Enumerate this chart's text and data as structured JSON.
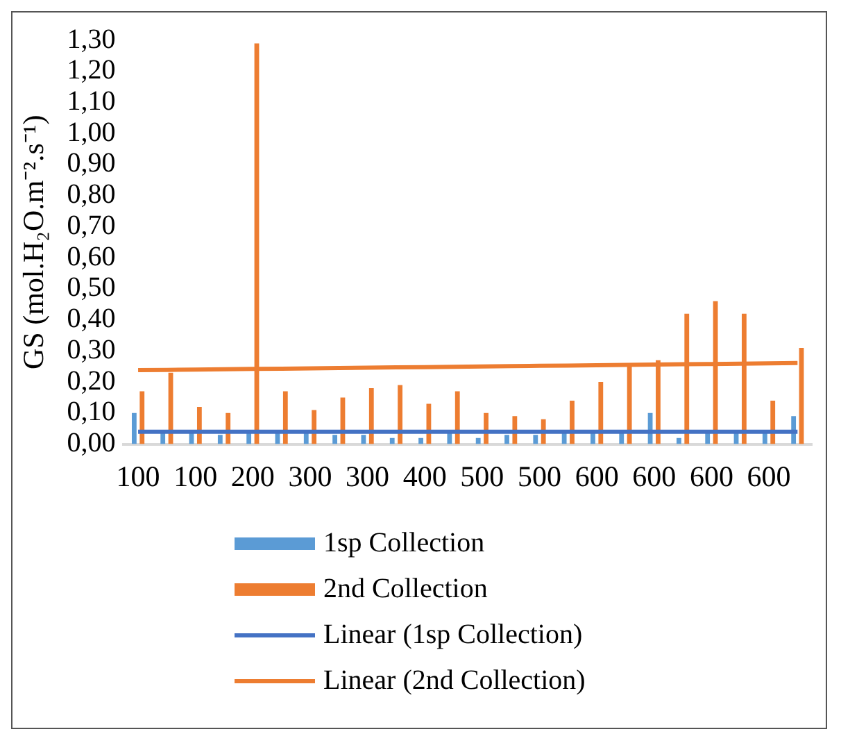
{
  "chart_data": {
    "type": "bar",
    "ylabel": "GS (mol.H₂O.m⁻².s⁻¹)",
    "categories": [
      "100",
      null,
      "100",
      null,
      "200",
      null,
      "300",
      null,
      "300",
      null,
      "400",
      null,
      "500",
      null,
      "500",
      null,
      "600",
      null,
      "600",
      null,
      "600",
      null,
      "600",
      null
    ],
    "series": [
      {
        "name": "1sp Collection",
        "color": "#5b9bd5",
        "values": [
          0.1,
          0.04,
          0.04,
          0.03,
          0.04,
          0.04,
          0.04,
          0.03,
          0.03,
          0.02,
          0.02,
          0.04,
          0.02,
          0.03,
          0.03,
          0.04,
          0.04,
          0.04,
          0.1,
          0.02,
          0.04,
          0.04,
          0.04,
          0.09
        ]
      },
      {
        "name": "2nd Collection",
        "color": "#ed7d31",
        "values": [
          0.17,
          0.23,
          0.12,
          0.1,
          1.29,
          0.17,
          0.11,
          0.15,
          0.18,
          0.19,
          0.13,
          0.17,
          0.1,
          0.09,
          0.08,
          0.14,
          0.2,
          0.25,
          0.27,
          0.42,
          0.46,
          0.42,
          0.14,
          0.31
        ]
      },
      {
        "name": "Linear (1sp Collection)",
        "type": "line",
        "color": "#4472c4",
        "values": [
          0.04,
          0.04,
          0.04,
          0.04,
          0.04,
          0.04,
          0.04,
          0.04,
          0.04,
          0.04,
          0.04,
          0.04,
          0.04,
          0.04,
          0.04,
          0.04,
          0.04,
          0.04,
          0.04,
          0.04,
          0.04,
          0.04,
          0.04,
          0.04
        ]
      },
      {
        "name": "Linear (2nd Collection)",
        "type": "line",
        "color": "#ed7d31",
        "values": [
          0.238,
          0.239,
          0.24,
          0.241,
          0.242,
          0.243,
          0.244,
          0.245,
          0.246,
          0.247,
          0.248,
          0.249,
          0.25,
          0.251,
          0.252,
          0.253,
          0.254,
          0.255,
          0.256,
          0.257,
          0.258,
          0.259,
          0.26,
          0.261
        ]
      }
    ],
    "ylim": [
      0,
      1.3
    ],
    "yticks": [
      {
        "value": 0,
        "label": "0,00"
      },
      {
        "value": 0.1,
        "label": "0,10"
      },
      {
        "value": 0.2,
        "label": "0,20"
      },
      {
        "value": 0.3,
        "label": "0,30"
      },
      {
        "value": 0.4,
        "label": "0,40"
      },
      {
        "value": 0.5,
        "label": "0,50"
      },
      {
        "value": 0.6,
        "label": "0,60"
      },
      {
        "value": 0.7,
        "label": "0,70"
      },
      {
        "value": 0.8,
        "label": "0,80"
      },
      {
        "value": 0.9,
        "label": "0,90"
      },
      {
        "value": 1.0,
        "label": "1,00"
      },
      {
        "value": 1.1,
        "label": "1,10"
      },
      {
        "value": 1.2,
        "label": "1,20"
      },
      {
        "value": 1.3,
        "label": "1,30"
      }
    ],
    "grid": false,
    "legend": "bottom",
    "marker": "none"
  }
}
